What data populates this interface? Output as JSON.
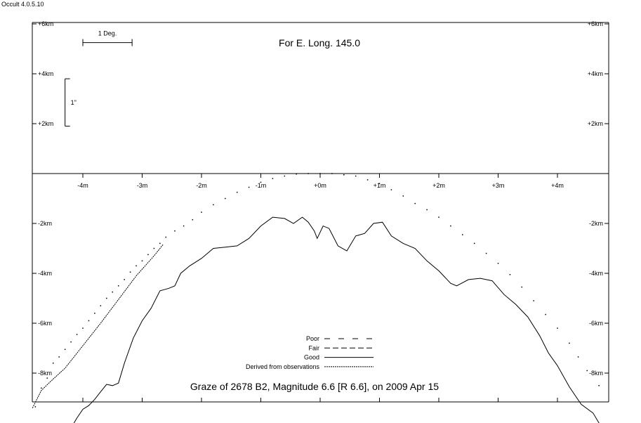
{
  "app": {
    "title": "Occult 4.0.5.10"
  },
  "chart_data": {
    "type": "line",
    "title": "For E. Long. 145.0",
    "subtitle": "Graze of  2678 B2,  Magnitude 6.6 [R 6.6],  on 2009 Apr 15",
    "x_unit": "arcmin",
    "y_unit": "km",
    "xlim": [
      -4.85,
      4.9
    ],
    "ylim": [
      -9.5,
      6.1
    ],
    "x_ticks": [
      {
        "value": -4,
        "label": "-4m"
      },
      {
        "value": -3,
        "label": "-3m"
      },
      {
        "value": -2,
        "label": "-2m"
      },
      {
        "value": -1,
        "label": "-1m"
      },
      {
        "value": 0,
        "label": "+0m"
      },
      {
        "value": 1,
        "label": "+1m"
      },
      {
        "value": 2,
        "label": "+2m"
      },
      {
        "value": 3,
        "label": "+3m"
      },
      {
        "value": 4,
        "label": "+4m"
      }
    ],
    "y_ticks": [
      {
        "value": 6,
        "label": "+6km"
      },
      {
        "value": 4,
        "label": "+4km"
      },
      {
        "value": 2,
        "label": "+2km"
      },
      {
        "value": -2,
        "label": "-2km"
      },
      {
        "value": -4,
        "label": "-4km"
      },
      {
        "value": -6,
        "label": "-6km"
      },
      {
        "value": -8,
        "label": "-8km"
      }
    ],
    "scale_bars": {
      "horizontal": {
        "label": "1 Deg.",
        "x": [
          -4.0,
          -3.17
        ],
        "y": 5.25
      },
      "vertical": {
        "label": "1\"",
        "x": -4.3,
        "y": [
          1.9,
          3.8
        ]
      }
    },
    "legend": {
      "position": "bottom-center",
      "entries": [
        {
          "label": "Poor",
          "style": "poor"
        },
        {
          "label": "Fair",
          "style": "fair"
        },
        {
          "label": "Good",
          "style": "good"
        },
        {
          "label": "Derived from observations",
          "style": "derived"
        }
      ]
    },
    "series": [
      {
        "style": "dots",
        "points": [
          [
            -4.8,
            -9.35
          ],
          [
            -4.7,
            -8.6
          ],
          [
            -4.6,
            -8.2
          ],
          [
            -4.5,
            -7.6
          ],
          [
            -4.4,
            -7.35
          ],
          [
            -4.3,
            -7.05
          ],
          [
            -4.2,
            -6.75
          ],
          [
            -4.1,
            -6.45
          ],
          [
            -4.0,
            -6.2
          ],
          [
            -3.9,
            -5.9
          ],
          [
            -3.8,
            -5.6
          ],
          [
            -3.7,
            -5.3
          ],
          [
            -3.6,
            -5.0
          ],
          [
            -3.5,
            -4.75
          ],
          [
            -3.4,
            -4.5
          ],
          [
            -3.3,
            -4.25
          ],
          [
            -3.2,
            -3.95
          ],
          [
            -3.1,
            -3.7
          ],
          [
            -3.0,
            -3.5
          ],
          [
            -2.9,
            -3.25
          ],
          [
            -2.8,
            -3.0
          ],
          [
            -2.7,
            -2.8
          ],
          [
            -2.6,
            -2.55
          ],
          [
            -2.45,
            -2.3
          ],
          [
            -2.3,
            -2.1
          ],
          [
            -2.15,
            -1.85
          ],
          [
            -2.0,
            -1.55
          ],
          [
            -1.8,
            -1.25
          ],
          [
            -1.6,
            -1.0
          ],
          [
            -1.4,
            -0.75
          ],
          [
            -1.2,
            -0.55
          ],
          [
            -1.0,
            -0.35
          ],
          [
            -0.8,
            -0.2
          ],
          [
            -0.6,
            -0.1
          ],
          [
            -0.4,
            -0.02
          ],
          [
            -0.2,
            0.0
          ],
          [
            0.0,
            0.0
          ],
          [
            0.2,
            0.0
          ],
          [
            0.4,
            -0.05
          ],
          [
            0.6,
            -0.1
          ],
          [
            0.8,
            -0.25
          ],
          [
            1.0,
            -0.4
          ],
          [
            1.2,
            -0.65
          ],
          [
            1.4,
            -0.9
          ],
          [
            1.6,
            -1.2
          ],
          [
            1.8,
            -1.45
          ],
          [
            2.0,
            -1.75
          ],
          [
            2.2,
            -2.1
          ],
          [
            2.4,
            -2.45
          ],
          [
            2.6,
            -2.8
          ],
          [
            2.8,
            -3.2
          ],
          [
            3.0,
            -3.6
          ],
          [
            3.2,
            -4.05
          ],
          [
            3.4,
            -4.55
          ],
          [
            3.6,
            -5.1
          ],
          [
            3.8,
            -5.65
          ],
          [
            4.0,
            -6.2
          ],
          [
            4.2,
            -6.8
          ],
          [
            4.35,
            -7.35
          ],
          [
            4.5,
            -7.9
          ],
          [
            4.7,
            -8.5
          ]
        ]
      },
      {
        "style": "derived",
        "points": [
          [
            -4.85,
            -9.4
          ],
          [
            -4.7,
            -8.7
          ],
          [
            -4.55,
            -8.35
          ],
          [
            -4.3,
            -7.8
          ],
          [
            -4.0,
            -6.9
          ],
          [
            -3.7,
            -6.0
          ],
          [
            -3.4,
            -5.05
          ],
          [
            -3.1,
            -4.1
          ],
          [
            -2.8,
            -3.3
          ],
          [
            -2.65,
            -2.85
          ]
        ]
      },
      {
        "style": "good",
        "points": [
          [
            -4.2,
            -10.2
          ],
          [
            -4.1,
            -9.8
          ],
          [
            -4.0,
            -9.45
          ],
          [
            -3.9,
            -9.3
          ],
          [
            -3.8,
            -9.05
          ],
          [
            -3.7,
            -8.75
          ],
          [
            -3.6,
            -8.45
          ],
          [
            -3.5,
            -8.5
          ],
          [
            -3.4,
            -8.4
          ],
          [
            -3.3,
            -7.6
          ],
          [
            -3.15,
            -6.6
          ],
          [
            -3.0,
            -5.9
          ],
          [
            -2.85,
            -5.4
          ],
          [
            -2.7,
            -4.7
          ],
          [
            -2.55,
            -4.6
          ],
          [
            -2.45,
            -4.5
          ],
          [
            -2.35,
            -4.0
          ],
          [
            -2.2,
            -3.7
          ],
          [
            -2.0,
            -3.4
          ],
          [
            -1.8,
            -3.0
          ],
          [
            -1.6,
            -2.95
          ],
          [
            -1.4,
            -2.9
          ],
          [
            -1.2,
            -2.6
          ],
          [
            -1.0,
            -2.1
          ],
          [
            -0.8,
            -1.75
          ],
          [
            -0.6,
            -1.8
          ],
          [
            -0.45,
            -2.0
          ],
          [
            -0.3,
            -1.75
          ],
          [
            -0.2,
            -1.95
          ],
          [
            -0.1,
            -2.3
          ],
          [
            -0.05,
            -2.6
          ],
          [
            0.05,
            -2.1
          ],
          [
            0.15,
            -2.2
          ],
          [
            0.3,
            -2.9
          ],
          [
            0.45,
            -3.1
          ],
          [
            0.6,
            -2.5
          ],
          [
            0.75,
            -2.4
          ],
          [
            0.9,
            -2.0
          ],
          [
            1.05,
            -1.95
          ],
          [
            1.2,
            -2.5
          ],
          [
            1.4,
            -2.8
          ],
          [
            1.6,
            -3.0
          ],
          [
            1.8,
            -3.5
          ],
          [
            2.0,
            -3.9
          ],
          [
            2.2,
            -4.4
          ],
          [
            2.3,
            -4.5
          ],
          [
            2.5,
            -4.25
          ],
          [
            2.7,
            -4.2
          ],
          [
            2.9,
            -4.3
          ],
          [
            3.1,
            -4.85
          ],
          [
            3.3,
            -5.25
          ],
          [
            3.5,
            -5.75
          ],
          [
            3.7,
            -6.5
          ],
          [
            3.85,
            -7.2
          ],
          [
            4.0,
            -7.7
          ],
          [
            4.2,
            -8.55
          ],
          [
            4.4,
            -9.25
          ],
          [
            4.6,
            -9.6
          ],
          [
            4.75,
            -10.2
          ]
        ]
      }
    ]
  }
}
